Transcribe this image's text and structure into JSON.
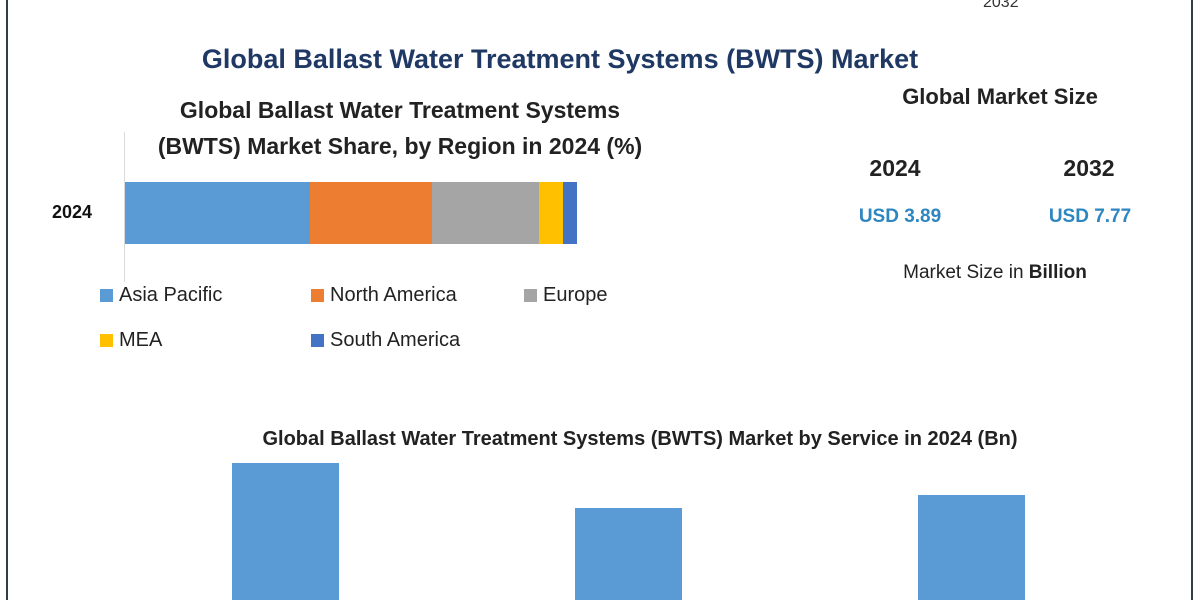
{
  "header": {
    "top_fragment": "2032",
    "title": "Global Ballast Water Treatment Systems (BWTS) Market"
  },
  "market_size": {
    "title": "Global Market Size",
    "years": [
      {
        "year": "2024",
        "value": "USD 3.89"
      },
      {
        "year": "2032",
        "value": "USD 7.77"
      }
    ],
    "unit_prefix": "Market Size in ",
    "unit_bold": "Billion",
    "value_color": "#2e86c1"
  },
  "chart_data": [
    {
      "type": "bar",
      "orientation": "horizontal",
      "stacked": true,
      "title_line1": "Global Ballast Water Treatment Systems",
      "title_line2": "(BWTS) Market Share, by Region in 2024 (%)",
      "categories": [
        "2024"
      ],
      "series": [
        {
          "name": "Asia Pacific",
          "values": [
            41
          ],
          "color": "#5b9bd5"
        },
        {
          "name": "North America",
          "values": [
            27
          ],
          "color": "#ed7d31"
        },
        {
          "name": "Europe",
          "values": [
            23.5
          ],
          "color": "#a5a5a5"
        },
        {
          "name": "MEA",
          "values": [
            5.5
          ],
          "color": "#ffc000"
        },
        {
          "name": "South America",
          "values": [
            3
          ],
          "color": "#4472c4"
        }
      ],
      "xlim": [
        0,
        100
      ],
      "legend_placement": "bottom"
    },
    {
      "type": "bar",
      "title": "Global Ballast Water Treatment Systems (BWTS) Market by Service in 2024 (Bn)",
      "categories": [
        "",
        "",
        ""
      ],
      "values": [
        1.37,
        0.92,
        1.05
      ],
      "color": "#5b9bd5"
    }
  ]
}
